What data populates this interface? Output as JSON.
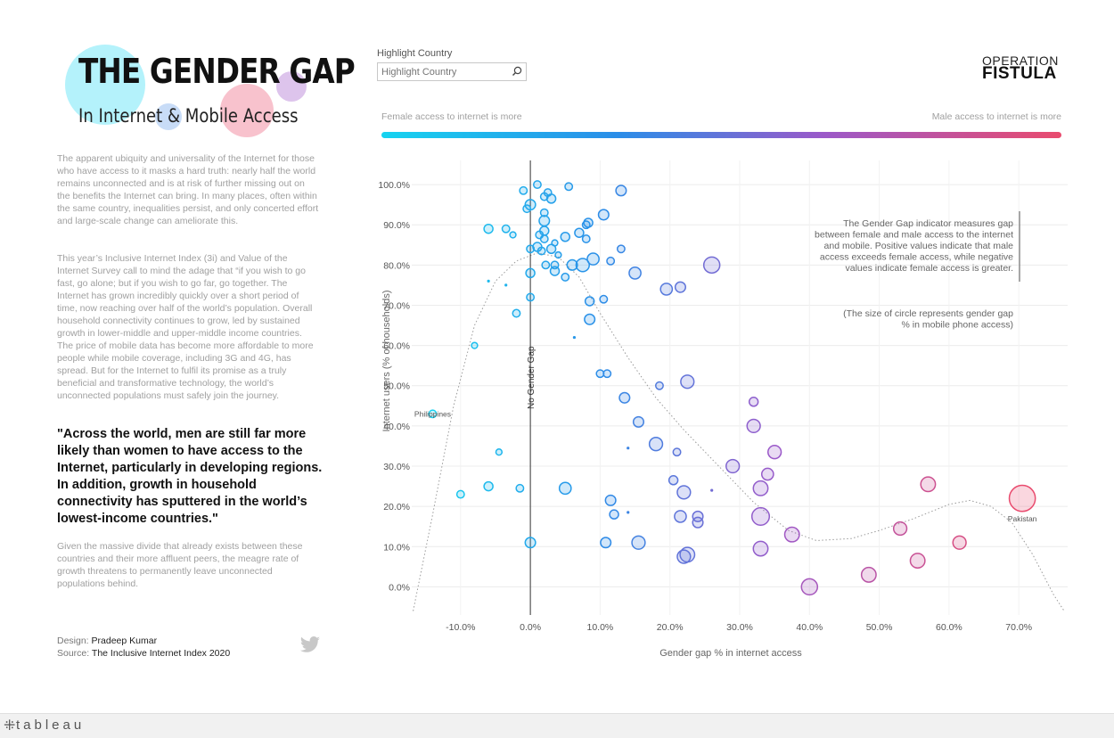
{
  "title": {
    "main": "THE GENDER GAP",
    "sub": "In Internet & Mobile Access"
  },
  "intro": {
    "p1": "The apparent ubiquity and universality of the Internet for those who have access to it masks a hard truth: nearly half the world remains unconnected and is at risk of further missing out on the benefits the Internet can bring. In many places, often within the same country, inequalities persist, and only concerted effort and large-scale change can ameliorate this.",
    "p2": "This year’s Inclusive Internet Index (3i) and Value of the Internet Survey call to mind the adage that “if you wish to go fast, go alone; but if you wish to go far, go together. The Internet has grown incredibly quickly over a short period of time, now reaching over half of the world’s population. Overall household connectivity continues to grow, led by sustained growth in lower-middle and upper-middle income countries. The price of mobile data has become more affordable to more people while mobile coverage, including 3G and 4G, has spread. But for the Internet to fulfil its promise as a truly beneficial and transformative technology, the world’s unconnected populations must safely join the journey.",
    "quote": "\"Across the world, men are still far more likely than women to have access to the Internet, particularly in developing regions. In addition, growth in household connectivity has sputtered in the world’s lowest-income countries.\"",
    "p3": "Given the massive divide that already exists between these countries and their more affluent peers, the meagre rate of growth threatens to permanently leave unconnected populations behind."
  },
  "credits": {
    "design_label": "Design:",
    "design_value": "Pradeep Kumar",
    "source_label": "Source:",
    "source_value": "The Inclusive Internet Index 2020"
  },
  "highlight": {
    "label": "Highlight Country",
    "placeholder": "Highlight Country"
  },
  "brand": {
    "line1": "OPERATION",
    "line2": "FISTULA"
  },
  "gradient_legend": {
    "left": "Female access to internet is more",
    "right": "Male access to internet is more",
    "colors": [
      "#16d3f0",
      "#2b8de8",
      "#9b59c9",
      "#e94b6e"
    ]
  },
  "footer": {
    "logo": "tableau"
  },
  "chart_data": {
    "type": "scatter",
    "xlabel": "Gender gap % in internet access",
    "ylabel": "Internet users (% of households)",
    "xlim": [
      -17,
      77
    ],
    "ylim": [
      -7,
      106
    ],
    "x_ticks": [
      "-10.0%",
      "0.0%",
      "10.0%",
      "20.0%",
      "30.0%",
      "40.0%",
      "50.0%",
      "60.0%",
      "70.0%"
    ],
    "y_ticks": [
      "0.0%",
      "10.0%",
      "20.0%",
      "30.0%",
      "40.0%",
      "50.0%",
      "60.0%",
      "70.0%",
      "80.0%",
      "90.0%",
      "100.0%"
    ],
    "grid": true,
    "reference_line": {
      "x": 0,
      "label": "No Gender Gap"
    },
    "annotation_main": "The Gender Gap indicator measures gap between female and male access to the internet and mobile. Positive values indicate that male access exceeds female access, while negative values indicate female access is greater.",
    "annotation_size": "(The size of circle represents gender gap % in mobile phone access)",
    "labeled_points": [
      {
        "label": "Philippines",
        "x": -14,
        "y": 43
      },
      {
        "label": "Pakistan",
        "x": 70.5,
        "y": 22
      }
    ],
    "trend_line": [
      [
        -16.8,
        -6
      ],
      [
        -14,
        18
      ],
      [
        -11,
        45
      ],
      [
        -8,
        65
      ],
      [
        -5,
        76
      ],
      [
        -2,
        81
      ],
      [
        1,
        83
      ],
      [
        4,
        82
      ],
      [
        7,
        77
      ],
      [
        10,
        68
      ],
      [
        14,
        57
      ],
      [
        18,
        47
      ],
      [
        22,
        39
      ],
      [
        27,
        30
      ],
      [
        32,
        21
      ],
      [
        37,
        14
      ],
      [
        41,
        11.5
      ],
      [
        46,
        12
      ],
      [
        50,
        14
      ],
      [
        55,
        17
      ],
      [
        60,
        20.5
      ],
      [
        63,
        21.5
      ],
      [
        66,
        20
      ],
      [
        69,
        16
      ],
      [
        72,
        8
      ],
      [
        75,
        -2
      ],
      [
        76.5,
        -6
      ]
    ],
    "points": [
      {
        "x": -14,
        "y": 43,
        "size": 2
      },
      {
        "x": -10,
        "y": 23,
        "size": 2
      },
      {
        "x": -8,
        "y": 60,
        "size": 1
      },
      {
        "x": -6,
        "y": 89,
        "size": 3
      },
      {
        "x": -6,
        "y": 76,
        "size": 0
      },
      {
        "x": -6,
        "y": 25,
        "size": 3
      },
      {
        "x": -4.5,
        "y": 33.5,
        "size": 1
      },
      {
        "x": -3.5,
        "y": 75,
        "size": 0
      },
      {
        "x": -3.5,
        "y": 89,
        "size": 2
      },
      {
        "x": -2.5,
        "y": 87.5,
        "size": 1
      },
      {
        "x": -2,
        "y": 68,
        "size": 2
      },
      {
        "x": -1.5,
        "y": 24.5,
        "size": 2
      },
      {
        "x": -1,
        "y": 98.5,
        "size": 2
      },
      {
        "x": -0.5,
        "y": 94,
        "size": 2
      },
      {
        "x": 0,
        "y": 95,
        "size": 4
      },
      {
        "x": 0,
        "y": 84,
        "size": 2
      },
      {
        "x": 0,
        "y": 78,
        "size": 3
      },
      {
        "x": 0,
        "y": 72,
        "size": 2
      },
      {
        "x": 0,
        "y": 11,
        "size": 4
      },
      {
        "x": 1,
        "y": 100,
        "size": 2
      },
      {
        "x": 1,
        "y": 84.5,
        "size": 3
      },
      {
        "x": 1.3,
        "y": 87.5,
        "size": 2
      },
      {
        "x": 1.6,
        "y": 83.5,
        "size": 2
      },
      {
        "x": 2,
        "y": 97,
        "size": 2
      },
      {
        "x": 2,
        "y": 93,
        "size": 2
      },
      {
        "x": 2,
        "y": 91,
        "size": 4
      },
      {
        "x": 2,
        "y": 88.5,
        "size": 3
      },
      {
        "x": 2,
        "y": 86.5,
        "size": 2
      },
      {
        "x": 2.2,
        "y": 80,
        "size": 2
      },
      {
        "x": 2.5,
        "y": 98,
        "size": 2
      },
      {
        "x": 3,
        "y": 96.5,
        "size": 3
      },
      {
        "x": 3,
        "y": 84,
        "size": 3
      },
      {
        "x": 3.5,
        "y": 80,
        "size": 2
      },
      {
        "x": 3.5,
        "y": 78.5,
        "size": 3
      },
      {
        "x": 3.5,
        "y": 85.5,
        "size": 1
      },
      {
        "x": 4,
        "y": 82.5,
        "size": 1
      },
      {
        "x": 5,
        "y": 87,
        "size": 3
      },
      {
        "x": 5,
        "y": 77,
        "size": 2
      },
      {
        "x": 5,
        "y": 24.5,
        "size": 5
      },
      {
        "x": 5.5,
        "y": 99.5,
        "size": 2
      },
      {
        "x": 6,
        "y": 80,
        "size": 4
      },
      {
        "x": 6.3,
        "y": 62,
        "size": 0
      },
      {
        "x": 7,
        "y": 88,
        "size": 3
      },
      {
        "x": 7.5,
        "y": 80,
        "size": 6
      },
      {
        "x": 8,
        "y": 90,
        "size": 2
      },
      {
        "x": 8,
        "y": 86.5,
        "size": 2
      },
      {
        "x": 8.3,
        "y": 90.5,
        "size": 3
      },
      {
        "x": 8.5,
        "y": 71,
        "size": 3
      },
      {
        "x": 8.5,
        "y": 66.5,
        "size": 4
      },
      {
        "x": 9,
        "y": 81.5,
        "size": 5
      },
      {
        "x": 10,
        "y": 53,
        "size": 2
      },
      {
        "x": 10.5,
        "y": 92.5,
        "size": 4
      },
      {
        "x": 10.5,
        "y": 71.5,
        "size": 2
      },
      {
        "x": 10.8,
        "y": 11,
        "size": 4
      },
      {
        "x": 11,
        "y": 53,
        "size": 2
      },
      {
        "x": 11.5,
        "y": 81,
        "size": 2
      },
      {
        "x": 11.5,
        "y": 21.5,
        "size": 4
      },
      {
        "x": 12,
        "y": 18,
        "size": 3
      },
      {
        "x": 13,
        "y": 98.5,
        "size": 4
      },
      {
        "x": 13,
        "y": 84,
        "size": 2
      },
      {
        "x": 13.5,
        "y": 47,
        "size": 4
      },
      {
        "x": 14,
        "y": 18.5,
        "size": 0
      },
      {
        "x": 14,
        "y": 34.5,
        "size": 0
      },
      {
        "x": 15,
        "y": 78,
        "size": 5
      },
      {
        "x": 15.5,
        "y": 41,
        "size": 4
      },
      {
        "x": 15.5,
        "y": 11,
        "size": 6
      },
      {
        "x": 18,
        "y": 35.5,
        "size": 6
      },
      {
        "x": 18.5,
        "y": 50,
        "size": 2
      },
      {
        "x": 19.5,
        "y": 74,
        "size": 5
      },
      {
        "x": 20.5,
        "y": 26.5,
        "size": 3
      },
      {
        "x": 21,
        "y": 33.5,
        "size": 2
      },
      {
        "x": 21.5,
        "y": 17.5,
        "size": 5
      },
      {
        "x": 21.5,
        "y": 74.5,
        "size": 4
      },
      {
        "x": 22,
        "y": 23.5,
        "size": 6
      },
      {
        "x": 22,
        "y": 7.5,
        "size": 6
      },
      {
        "x": 22.5,
        "y": 8,
        "size": 7
      },
      {
        "x": 22.5,
        "y": 51,
        "size": 6
      },
      {
        "x": 24,
        "y": 17.5,
        "size": 4
      },
      {
        "x": 24,
        "y": 16,
        "size": 4
      },
      {
        "x": 26,
        "y": 24,
        "size": 0
      },
      {
        "x": 26,
        "y": 80,
        "size": 8
      },
      {
        "x": 29,
        "y": 30,
        "size": 6
      },
      {
        "x": 32,
        "y": 46,
        "size": 3
      },
      {
        "x": 32,
        "y": 40,
        "size": 6
      },
      {
        "x": 33,
        "y": 24.5,
        "size": 7
      },
      {
        "x": 33,
        "y": 17.5,
        "size": 9
      },
      {
        "x": 33,
        "y": 9.5,
        "size": 7
      },
      {
        "x": 34,
        "y": 28,
        "size": 5
      },
      {
        "x": 35,
        "y": 33.5,
        "size": 6
      },
      {
        "x": 37.5,
        "y": 13,
        "size": 7
      },
      {
        "x": 40,
        "y": 0,
        "size": 8
      },
      {
        "x": 48.5,
        "y": 3,
        "size": 7
      },
      {
        "x": 53,
        "y": 14.5,
        "size": 6
      },
      {
        "x": 55.5,
        "y": 6.5,
        "size": 7
      },
      {
        "x": 57,
        "y": 25.5,
        "size": 7
      },
      {
        "x": 61.5,
        "y": 11,
        "size": 6
      },
      {
        "x": 70.5,
        "y": 22,
        "size": 15
      }
    ]
  }
}
